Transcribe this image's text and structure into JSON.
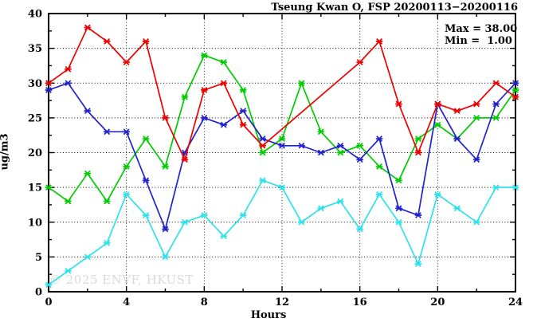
{
  "title": "Tseung Kwan O, FSP 20200113−20200116",
  "legend": {
    "max_label": "Max = 38.00",
    "min_label": "Min =  1.00"
  },
  "watermark": "© 2025 ENVF, HKUST",
  "chart_data": {
    "type": "line",
    "title": "Tseung Kwan O, FSP 20200113−20200116",
    "xlabel": "Hours",
    "ylabel": "ug/m3",
    "xlim": [
      0,
      24
    ],
    "ylim": [
      0,
      40
    ],
    "grid": "dotted, horizontal at every 5 ug/m3, vertical at every 4 hours",
    "legend_position": "top-right inside plot",
    "x_major_ticks": [
      0,
      4,
      8,
      12,
      16,
      20,
      24
    ],
    "x_minor_ticks": [
      2,
      6,
      10,
      14,
      18,
      22
    ],
    "y_major_ticks": [
      0,
      5,
      10,
      15,
      20,
      25,
      30,
      35,
      40
    ],
    "y_minor_ticks": [
      2.5,
      7.5,
      12.5,
      17.5,
      22.5,
      27.5,
      32.5,
      37.5
    ],
    "x": [
      0,
      1,
      2,
      3,
      4,
      5,
      6,
      7,
      8,
      9,
      10,
      11,
      12,
      13,
      14,
      15,
      16,
      17,
      18,
      19,
      20,
      21,
      22,
      23,
      24
    ],
    "series": [
      {
        "name": "green",
        "color": "#00cc00",
        "values": [
          15,
          13,
          17,
          13,
          18,
          22,
          18,
          28,
          34,
          33,
          29,
          20,
          22,
          30,
          23,
          20,
          21,
          18,
          16,
          22,
          24,
          22,
          25,
          25,
          29
        ]
      },
      {
        "name": "cyan",
        "color": "#2ee1ea",
        "values": [
          1,
          3,
          5,
          7,
          14,
          11,
          5,
          10,
          11,
          8,
          11,
          16,
          15,
          10,
          12,
          13,
          9,
          14,
          10,
          4,
          14,
          12,
          10,
          15,
          15
        ]
      },
      {
        "name": "blue",
        "color": "#2222cc",
        "values": [
          29,
          30,
          26,
          23,
          23,
          16,
          9,
          20,
          25,
          24,
          26,
          22,
          21,
          21,
          20,
          21,
          19,
          22,
          12,
          11,
          27,
          22,
          19,
          27,
          30
        ]
      },
      {
        "name": "red",
        "color": "#ee0000",
        "values": [
          30,
          32,
          38,
          36,
          33,
          36,
          25,
          19,
          29,
          30,
          24,
          21,
          null,
          null,
          null,
          null,
          33,
          36,
          27,
          20,
          27,
          26,
          27,
          30,
          28
        ]
      }
    ],
    "stats": {
      "max": 38.0,
      "min": 1.0
    }
  }
}
